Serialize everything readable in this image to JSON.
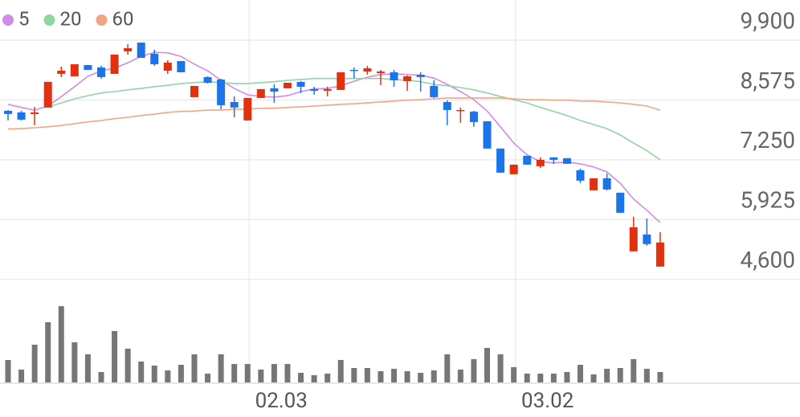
{
  "chart_data": [
    {
      "type": "candlestick",
      "categories": [
        null,
        null,
        null,
        null,
        null,
        null,
        null,
        null,
        null,
        null,
        null,
        null,
        null,
        null,
        null,
        null,
        null,
        null,
        "02.03",
        null,
        null,
        null,
        null,
        null,
        null,
        null,
        null,
        null,
        null,
        null,
        null,
        null,
        null,
        null,
        null,
        null,
        null,
        null,
        "03.02",
        null,
        null,
        null,
        null,
        null,
        null,
        null,
        null,
        null,
        null,
        null
      ],
      "open": [
        8334,
        8299,
        8263,
        8406,
        9153,
        9099,
        9349,
        9295,
        9153,
        9651,
        9847,
        9598,
        9224,
        9437,
        8637,
        9082,
        9028,
        8530,
        8121,
        8619,
        8833,
        8833,
        8975,
        8815,
        8779,
        8797,
        9242,
        9206,
        9171,
        9188,
        8993,
        9135,
        8886,
        8530,
        8334,
        8317,
        8103,
        7498,
        6929,
        7338,
        7107,
        7303,
        7285,
        7018,
        6573,
        6840,
        6520,
        5221,
        5595,
        4883
      ],
      "high": [
        8352,
        8334,
        8423,
        8975,
        9313,
        9366,
        9349,
        9331,
        9580,
        9811,
        9847,
        9687,
        9455,
        9437,
        8886,
        9099,
        9046,
        8655,
        8619,
        8815,
        8922,
        8957,
        8993,
        8868,
        8868,
        9188,
        9295,
        9331,
        9242,
        9242,
        9117,
        9188,
        9011,
        8566,
        8406,
        8334,
        8103,
        7498,
        7142,
        7338,
        7303,
        7303,
        7285,
        7054,
        6840,
        6947,
        6520,
        5986,
        5951,
        5648
      ],
      "low": [
        8121,
        8121,
        8014,
        8406,
        9082,
        9099,
        9242,
        9046,
        9153,
        9580,
        9509,
        9331,
        9153,
        9188,
        8637,
        8939,
        8370,
        8192,
        8121,
        8619,
        8512,
        8833,
        8726,
        8690,
        8655,
        8797,
        9046,
        9135,
        8904,
        8868,
        8779,
        8761,
        8619,
        8014,
        8068,
        7979,
        7498,
        6965,
        6929,
        7142,
        7071,
        7160,
        7160,
        6734,
        6573,
        6573,
        6075,
        5221,
        5346,
        4883
      ],
      "close": [
        8263,
        8139,
        8299,
        8975,
        9224,
        9366,
        9242,
        9082,
        9580,
        9722,
        9509,
        9366,
        9402,
        9188,
        8886,
        8957,
        8459,
        8406,
        8619,
        8815,
        8761,
        8957,
        8868,
        8779,
        8815,
        9188,
        9224,
        9277,
        9206,
        9011,
        9099,
        9082,
        8637,
        8352,
        8352,
        8085,
        7498,
        6965,
        7142,
        7142,
        7249,
        7249,
        7160,
        6787,
        6840,
        6591,
        6075,
        5755,
        5381,
        5417
      ],
      "up_color": "#e2310f",
      "down_color": "#1b74e8",
      "series": [
        {
          "name": "5",
          "color": "#d28be6",
          "values": [
            8480,
            8410,
            8350,
            8440,
            8650,
            8870,
            9100,
            9220,
            9280,
            9400,
            9540,
            9630,
            9620,
            9540,
            9370,
            9220,
            9010,
            8830,
            8690,
            8650,
            8640,
            8670,
            8760,
            8820,
            8830,
            8890,
            8990,
            9080,
            9140,
            9150,
            9140,
            9120,
            9060,
            8920,
            8760,
            8580,
            8330,
            7980,
            7620,
            7360,
            7210,
            7180,
            7200,
            7160,
            7090,
            6980,
            6730,
            6380,
            6130,
            5860
          ]
        },
        {
          "name": "20",
          "color": "#8fd6a3",
          "values": [
            null,
            null,
            null,
            8420,
            8510,
            8600,
            8670,
            8730,
            8760,
            8800,
            8830,
            8870,
            8900,
            8940,
            8960,
            8980,
            8960,
            8940,
            8940,
            8960,
            8980,
            9010,
            9030,
            9050,
            9050,
            9050,
            9050,
            9050,
            9050,
            9030,
            9010,
            8980,
            8920,
            8890,
            8850,
            8800,
            8730,
            8650,
            8580,
            8510,
            8410,
            8320,
            8230,
            8120,
            8030,
            7940,
            7800,
            7620,
            7450,
            7250
          ]
        },
        {
          "name": "60",
          "color": "#f2a582",
          "values": [
            7930,
            7940,
            7960,
            7980,
            8010,
            8050,
            8090,
            8120,
            8160,
            8190,
            8230,
            8260,
            8300,
            8320,
            8330,
            8350,
            8350,
            8370,
            8370,
            8390,
            8390,
            8410,
            8420,
            8440,
            8460,
            8480,
            8490,
            8510,
            8530,
            8550,
            8570,
            8580,
            8600,
            8620,
            8620,
            8620,
            8620,
            8620,
            8600,
            8580,
            8580,
            8570,
            8570,
            8550,
            8550,
            8530,
            8510,
            8480,
            8440,
            8350
          ]
        }
      ],
      "ylim": [
        4470,
        10790
      ],
      "yticks": [
        {
          "value": 4600,
          "label": "4,600"
        },
        {
          "value": 5925,
          "label": "5,925"
        },
        {
          "value": 7250,
          "label": "7,250"
        },
        {
          "value": 8575,
          "label": "8,575"
        },
        {
          "value": 9900,
          "label": "9,900"
        }
      ],
      "grid": true
    },
    {
      "type": "bar",
      "color": "#767676",
      "values": [
        28,
        16,
        47,
        75,
        95,
        50,
        35,
        13,
        64,
        42,
        26,
        21,
        15,
        22,
        35,
        11,
        35,
        23,
        23,
        16,
        23,
        23,
        12,
        9,
        11,
        28,
        18,
        18,
        14,
        17,
        14,
        12,
        15,
        35,
        16,
        29,
        43,
        35,
        19,
        11,
        11,
        11,
        13,
        22,
        10,
        17,
        18,
        29,
        17,
        13
      ],
      "ylim": [
        0,
        106
      ]
    }
  ]
}
